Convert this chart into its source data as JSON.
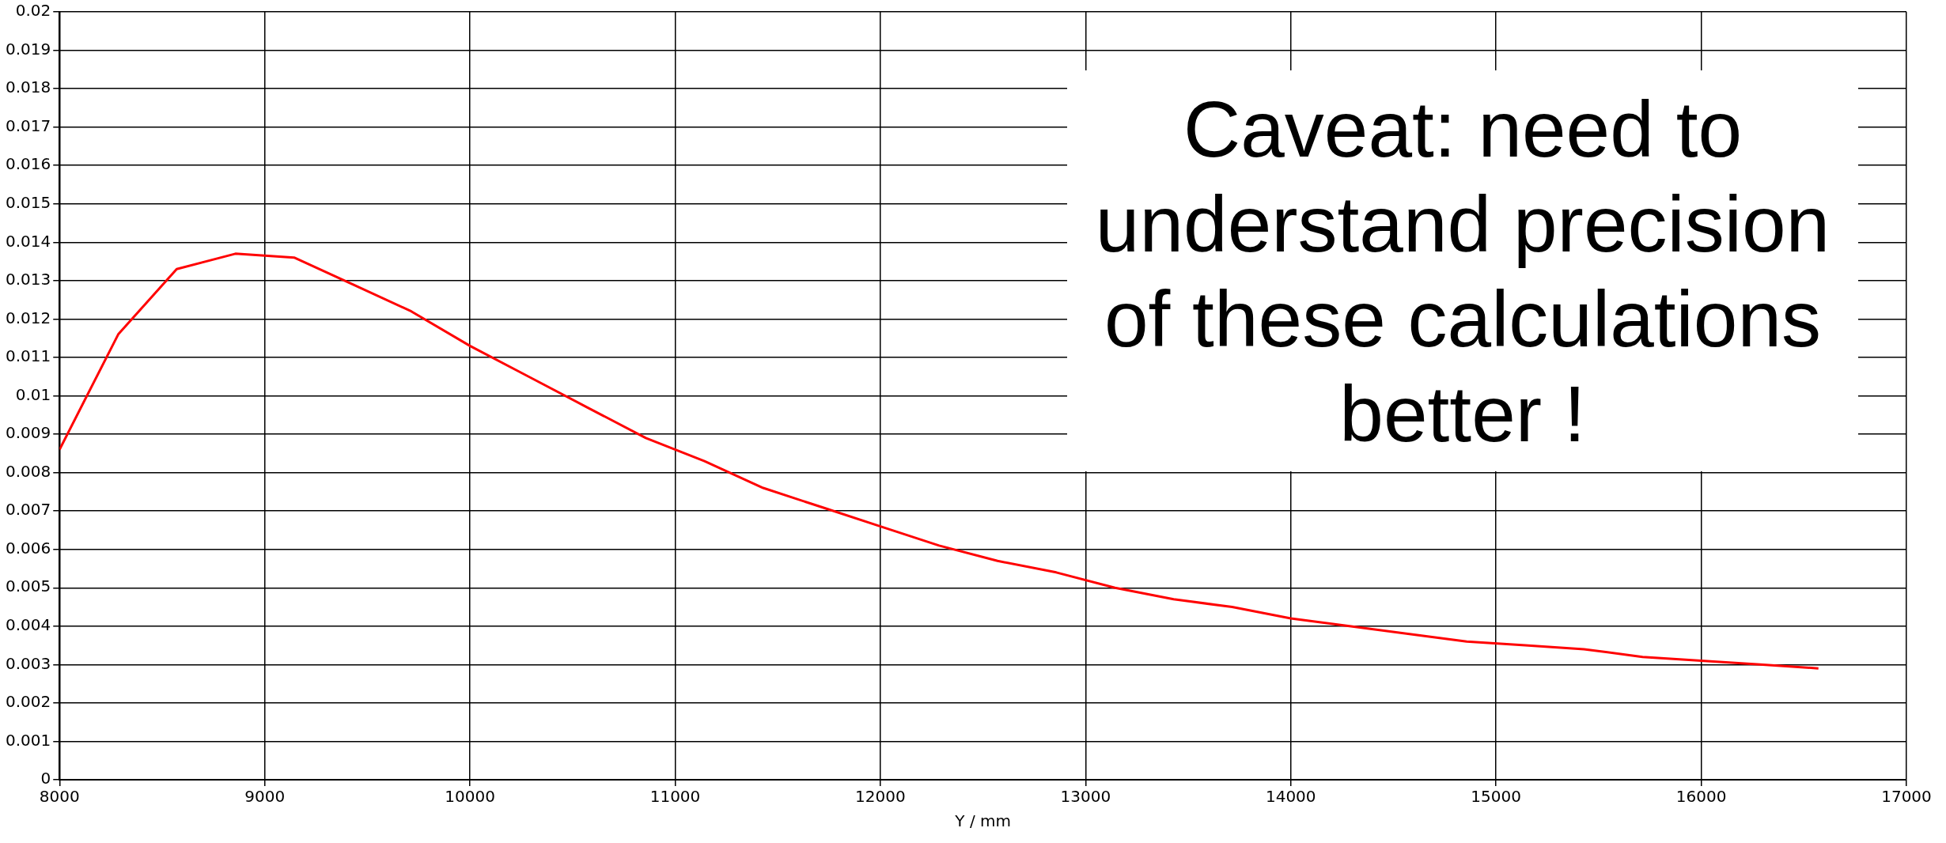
{
  "chart_data": {
    "type": "line",
    "xlabel": "Y / mm",
    "x": [
      8000,
      8286,
      8571,
      8857,
      9143,
      9429,
      9714,
      10000,
      10286,
      10571,
      10857,
      11143,
      11429,
      11714,
      12000,
      12286,
      12571,
      12857,
      13143,
      13429,
      13714,
      14000,
      14286,
      14571,
      14857,
      15143,
      15429,
      15714,
      16000,
      16286,
      16571
    ],
    "series": [
      {
        "color": "#ff0000",
        "values": [
          0.0086,
          0.0116,
          0.0133,
          0.0137,
          0.0136,
          0.0129,
          0.0122,
          0.0113,
          0.0105,
          0.0097,
          0.0089,
          0.0083,
          0.0076,
          0.0071,
          0.0066,
          0.0061,
          0.0057,
          0.0054,
          0.005,
          0.0047,
          0.0045,
          0.0042,
          0.004,
          0.0038,
          0.0036,
          0.0035,
          0.0034,
          0.0032,
          0.0031,
          0.003,
          0.0029
        ]
      }
    ],
    "xlim": [
      8000,
      17000
    ],
    "xticks": [
      8000,
      9000,
      10000,
      11000,
      12000,
      13000,
      14000,
      15000,
      16000,
      17000
    ],
    "ylim": [
      0,
      0.02
    ],
    "yticks": [
      0,
      0.001,
      0.002,
      0.003,
      0.004,
      0.005,
      0.006,
      0.007,
      0.008,
      0.009,
      0.01,
      0.011,
      0.012,
      0.013,
      0.014,
      0.015,
      0.016,
      0.017,
      0.018,
      0.019,
      0.02
    ],
    "grid": true,
    "legend": false,
    "marker": "none",
    "line_style": "solid",
    "annotations": [
      "Caveat: need to understand precision of these calculations better !"
    ]
  }
}
